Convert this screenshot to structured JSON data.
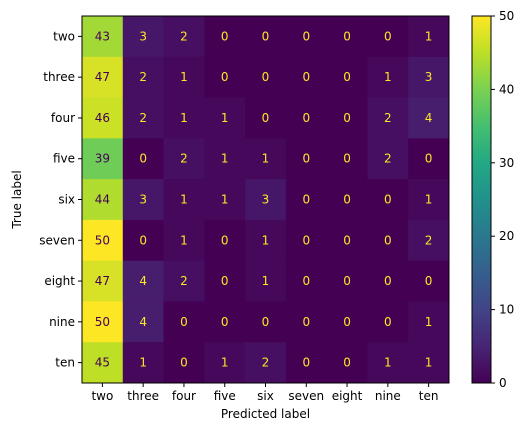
{
  "chart_data": {
    "type": "heatmap",
    "xlabel": "Predicted label",
    "ylabel": "True label",
    "x_categories": [
      "two",
      "three",
      "four",
      "five",
      "six",
      "seven",
      "eight",
      "nine",
      "ten"
    ],
    "y_categories": [
      "two",
      "three",
      "four",
      "five",
      "six",
      "seven",
      "eight",
      "nine",
      "ten"
    ],
    "values": [
      [
        43,
        3,
        2,
        0,
        0,
        0,
        0,
        0,
        1
      ],
      [
        47,
        2,
        1,
        0,
        0,
        0,
        0,
        1,
        3
      ],
      [
        46,
        2,
        1,
        1,
        0,
        0,
        0,
        2,
        4
      ],
      [
        39,
        0,
        2,
        1,
        1,
        0,
        0,
        2,
        0
      ],
      [
        44,
        3,
        1,
        1,
        3,
        0,
        0,
        0,
        1
      ],
      [
        50,
        0,
        1,
        0,
        1,
        0,
        0,
        0,
        2
      ],
      [
        47,
        4,
        2,
        0,
        1,
        0,
        0,
        0,
        0
      ],
      [
        50,
        4,
        0,
        0,
        0,
        0,
        0,
        0,
        1
      ],
      [
        45,
        1,
        0,
        1,
        2,
        0,
        0,
        1,
        1
      ]
    ],
    "colormap": "viridis",
    "colorbar": {
      "range": [
        0,
        50
      ],
      "ticks": [
        0,
        10,
        20,
        30,
        40,
        50
      ]
    }
  }
}
